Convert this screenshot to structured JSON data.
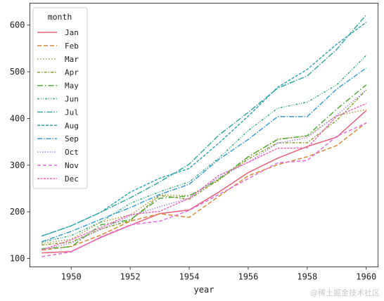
{
  "watermark": "@稀土掘金技术社区",
  "chart_data": {
    "type": "line",
    "xlabel": "year",
    "ylabel": "",
    "xlim": [
      1948.6,
      1960.4
    ],
    "ylim": [
      82,
      647
    ],
    "x_ticks": [
      1950,
      1952,
      1954,
      1956,
      1958,
      1960
    ],
    "y_ticks": [
      100,
      200,
      300,
      400,
      500,
      600
    ],
    "legend_title": "month",
    "legend_position": "upper-left",
    "grid": false,
    "x": [
      1949,
      1950,
      1951,
      1952,
      1953,
      1954,
      1955,
      1956,
      1957,
      1958,
      1959,
      1960
    ],
    "series": [
      {
        "name": "Jan",
        "color": "#e8607a",
        "dash": "",
        "values": [
          112,
          115,
          145,
          171,
          196,
          204,
          242,
          284,
          315,
          340,
          360,
          417
        ]
      },
      {
        "name": "Feb",
        "color": "#d98a37",
        "dash": "6,3",
        "values": [
          118,
          126,
          150,
          180,
          196,
          188,
          233,
          277,
          301,
          318,
          342,
          391
        ]
      },
      {
        "name": "Mar",
        "color": "#b09a2b",
        "dash": "1.5,2.5",
        "values": [
          132,
          141,
          178,
          193,
          236,
          235,
          267,
          317,
          356,
          362,
          406,
          419
        ]
      },
      {
        "name": "Apr",
        "color": "#86a32c",
        "dash": "4,2,1.5,2",
        "values": [
          129,
          135,
          163,
          181,
          235,
          227,
          269,
          313,
          348,
          348,
          396,
          461
        ]
      },
      {
        "name": "May",
        "color": "#4fac3a",
        "dash": "8,3,1.5,3",
        "values": [
          121,
          125,
          172,
          183,
          229,
          234,
          270,
          318,
          355,
          363,
          420,
          472
        ]
      },
      {
        "name": "Jun",
        "color": "#38b085",
        "dash": "3,2,1,2,1,2",
        "values": [
          135,
          149,
          178,
          218,
          243,
          264,
          315,
          374,
          422,
          435,
          472,
          535
        ]
      },
      {
        "name": "Jul",
        "color": "#36ab9f",
        "dash": "8,2,1.5,2",
        "values": [
          148,
          170,
          199,
          230,
          264,
          302,
          364,
          413,
          465,
          491,
          548,
          622
        ]
      },
      {
        "name": "Aug",
        "color": "#33a8b4",
        "dash": "4,2",
        "values": [
          148,
          170,
          199,
          242,
          272,
          293,
          347,
          405,
          467,
          505,
          559,
          606
        ]
      },
      {
        "name": "Sep",
        "color": "#3a9fd6",
        "dash": "7,2,1.5,2",
        "values": [
          136,
          158,
          184,
          209,
          237,
          259,
          312,
          355,
          404,
          404,
          463,
          508
        ]
      },
      {
        "name": "Oct",
        "color": "#a98ae6",
        "dash": "1.5,2",
        "values": [
          119,
          133,
          162,
          191,
          211,
          229,
          274,
          306,
          347,
          359,
          407,
          461
        ]
      },
      {
        "name": "Nov",
        "color": "#e26ee0",
        "dash": "5,3",
        "values": [
          104,
          114,
          146,
          172,
          180,
          203,
          237,
          271,
          305,
          310,
          362,
          390
        ]
      },
      {
        "name": "Dec",
        "color": "#ee6ab8",
        "dash": "3,1.5",
        "values": [
          118,
          140,
          166,
          194,
          201,
          229,
          278,
          306,
          336,
          337,
          405,
          432
        ]
      }
    ]
  }
}
